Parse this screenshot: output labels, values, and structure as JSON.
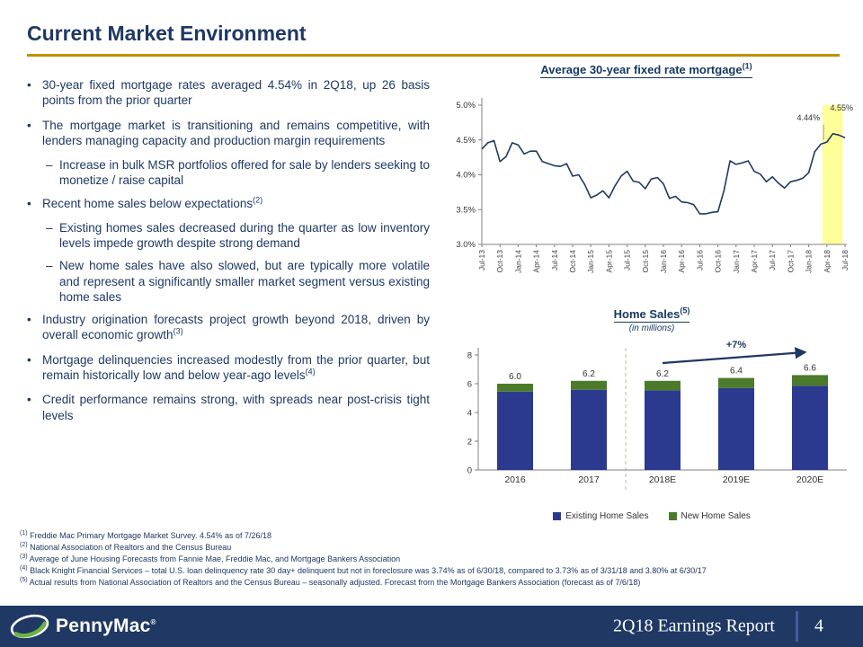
{
  "slide": {
    "title": "Current Market Environment",
    "accent_color": "#BF9000",
    "text_color": "#1F3864"
  },
  "bullets": [
    {
      "marker": "•",
      "level": 1,
      "text": "30-year fixed mortgage rates averaged 4.54% in 2Q18, up 26 basis points from the prior quarter"
    },
    {
      "marker": "•",
      "level": 1,
      "text": "The mortgage market is transitioning and remains competitive, with lenders managing capacity and production margin requirements"
    },
    {
      "marker": "–",
      "level": 2,
      "text": "Increase in bulk MSR portfolios offered for sale by lenders seeking to monetize / raise capital"
    },
    {
      "marker": "•",
      "level": 1,
      "text": "Recent home sales below expectations",
      "sup": "(2)"
    },
    {
      "marker": "–",
      "level": 2,
      "text": "Existing homes sales decreased during the quarter as low inventory levels impede growth despite strong demand"
    },
    {
      "marker": "–",
      "level": 2,
      "text": "New home sales have also slowed, but are typically more volatile and represent a significantly smaller market segment versus existing home sales"
    },
    {
      "marker": "•",
      "level": 1,
      "text": "Industry origination forecasts project growth beyond 2018, driven by overall economic growth",
      "sup": "(3)"
    },
    {
      "marker": "•",
      "level": 1,
      "text": "Mortgage delinquencies increased modestly from the prior quarter, but remain historically low and below year-ago levels",
      "sup": "(4)"
    },
    {
      "marker": "•",
      "level": 1,
      "text": "Credit performance remains strong, with spreads near post-crisis tight levels"
    }
  ],
  "footnotes": [
    {
      "marker": "(1)",
      "text": "Freddie Mac Primary Mortgage Market Survey. 4.54% as of 7/26/18"
    },
    {
      "marker": "(2)",
      "text": "National Association of Realtors and the Census Bureau"
    },
    {
      "marker": "(3)",
      "text": "Average of June Housing Forecasts from Fannie Mae, Freddie Mac, and Mortgage Bankers Association"
    },
    {
      "marker": "(4)",
      "text": "Black Knight Financial Services – total U.S. loan delinquency rate 30 day+ delinquent but not in foreclosure was 3.74% as of 6/30/18, compared to 3.73% as of 3/31/18 and 3.80% at 6/30/17"
    },
    {
      "marker": "(5)",
      "text": "Actual results from National Association of Realtors and the Census Bureau – seasonally adjusted. Forecast from the Mortgage Bankers Association (forecast as of 7/6/18)"
    }
  ],
  "footer": {
    "logo_text": "PennyMac",
    "logo_reg": "®",
    "report_label": "2Q18 Earnings Report",
    "page_number": "4",
    "bar_color": "#1F3864",
    "logo_green": "#6CB33F"
  },
  "chart_data": [
    {
      "type": "line",
      "title": "Average 30-year fixed rate mortgage",
      "title_sup": "(1)",
      "ylim": [
        3.0,
        5.0
      ],
      "yticks": [
        {
          "v": 3.0,
          "label": "3.0%"
        },
        {
          "v": 3.5,
          "label": "3.5%"
        },
        {
          "v": 4.0,
          "label": "4.0%"
        },
        {
          "v": 4.5,
          "label": "4.5%"
        },
        {
          "v": 5.0,
          "label": "5.0%"
        }
      ],
      "x_tick_labels": [
        "Jul-13",
        "Oct-13",
        "Jan-14",
        "Apr-14",
        "Jul-14",
        "Oct-14",
        "Jan-15",
        "Apr-15",
        "Jul-15",
        "Oct-15",
        "Jan-16",
        "Apr-16",
        "Jul-16",
        "Oct-16",
        "Jan-17",
        "Apr-17",
        "Jul-17",
        "Oct-17",
        "Jan-18",
        "Apr-18",
        "Jul-18"
      ],
      "x_tick_step": 3,
      "line_color": "#1F3864",
      "highlight_band": {
        "from": 56.3,
        "to": 59.6,
        "color": "#FFFF99"
      },
      "annotations": [
        {
          "label": "4.44%",
          "month_index": 57
        },
        {
          "label": "4.55%",
          "month_index": 60
        }
      ],
      "series": [
        {
          "name": "30-year fixed mortgage rate",
          "values": [
            4.37,
            4.46,
            4.49,
            4.19,
            4.26,
            4.46,
            4.43,
            4.3,
            4.34,
            4.34,
            4.19,
            4.16,
            4.13,
            4.12,
            4.16,
            3.98,
            4.0,
            3.86,
            3.67,
            3.71,
            3.77,
            3.67,
            3.84,
            3.98,
            4.05,
            3.91,
            3.89,
            3.8,
            3.94,
            3.96,
            3.87,
            3.66,
            3.69,
            3.61,
            3.6,
            3.57,
            3.44,
            3.44,
            3.46,
            3.47,
            3.77,
            4.2,
            4.15,
            4.17,
            4.2,
            4.05,
            4.01,
            3.9,
            3.97,
            3.88,
            3.81,
            3.9,
            3.92,
            3.95,
            4.03,
            4.33,
            4.44,
            4.47,
            4.59,
            4.57,
            4.53
          ]
        }
      ]
    },
    {
      "type": "stacked-bar",
      "title": "Home Sales",
      "title_sup": "(5)",
      "subtitle": "(in millions)",
      "categories": [
        "2016",
        "2017",
        "2018E",
        "2019E",
        "2020E"
      ],
      "ylim": [
        0,
        8
      ],
      "yticks": [
        0,
        2,
        4,
        6,
        8
      ],
      "series": [
        {
          "name": "Existing Home Sales",
          "color": "#2B3A8F",
          "values": [
            5.45,
            5.58,
            5.54,
            5.7,
            5.85
          ]
        },
        {
          "name": "New Home Sales",
          "color": "#4C7A2B",
          "values": [
            0.55,
            0.62,
            0.66,
            0.7,
            0.75
          ]
        }
      ],
      "totals": [
        "6.0",
        "6.2",
        "6.2",
        "6.4",
        "6.6"
      ],
      "growth_label": "+7%",
      "divider_after_category": "2017"
    }
  ]
}
